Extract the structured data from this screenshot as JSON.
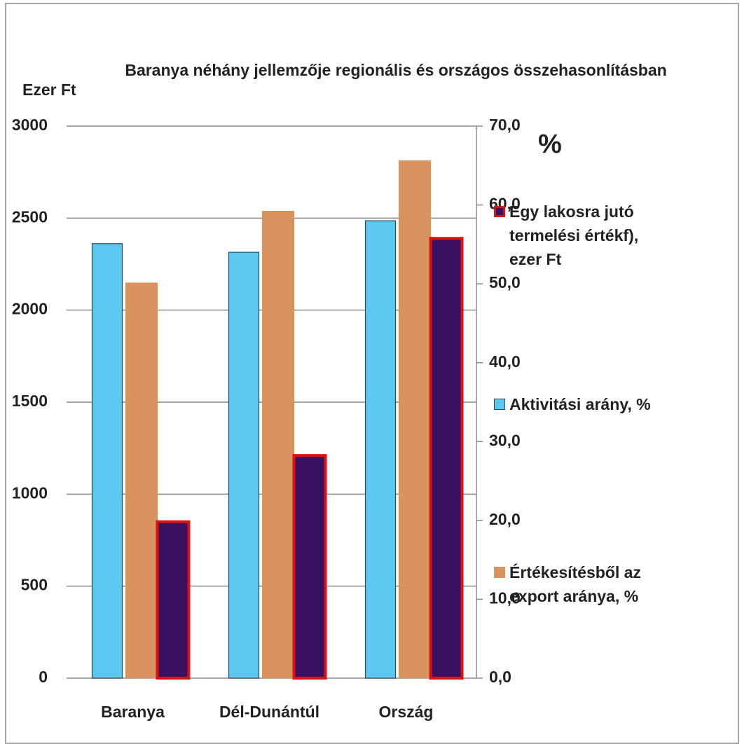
{
  "chart_data": {
    "type": "bar",
    "title": "Baranya néhány jellemzője  regionális és országos összehasonlításban",
    "ylabel": "Ezer Ft",
    "y2label": "%",
    "categories": [
      "Baranya",
      "Dél-Dunántúl",
      "Ország"
    ],
    "series": [
      {
        "name": "Egy lakosra jutó termelési értékf), ezer Ft",
        "color": "#3a1060",
        "edge": "#e01010",
        "values": [
          850,
          1210,
          2390
        ]
      },
      {
        "name": "Aktivitási arány, %",
        "color": "#5cc8f0",
        "edge": "#2a4a5a",
        "axis": "y2",
        "values": [
          55.1,
          54.0,
          58.0
        ]
      },
      {
        "name": "Értékesítésből az export aránya, %",
        "color": "#d8935e",
        "edge": "#d8935e",
        "axis": "y2",
        "values": [
          50.1,
          59.2,
          65.6
        ]
      }
    ],
    "ylim": [
      0,
      3000
    ],
    "yticks": [
      0,
      500,
      1000,
      1500,
      2000,
      2500,
      3000
    ],
    "y2lim": [
      0,
      70
    ],
    "y2ticks": [
      {
        "value": 0,
        "label": "0,0"
      },
      {
        "value": 10,
        "label": "10,0"
      },
      {
        "value": 20,
        "label": "20,0"
      },
      {
        "value": 30,
        "label": "30,0"
      },
      {
        "value": 40,
        "label": "40,0"
      },
      {
        "value": 50,
        "label": "50,0"
      },
      {
        "value": 60,
        "label": "60,0"
      },
      {
        "value": 70,
        "label": "70,0"
      }
    ],
    "grid": true
  }
}
